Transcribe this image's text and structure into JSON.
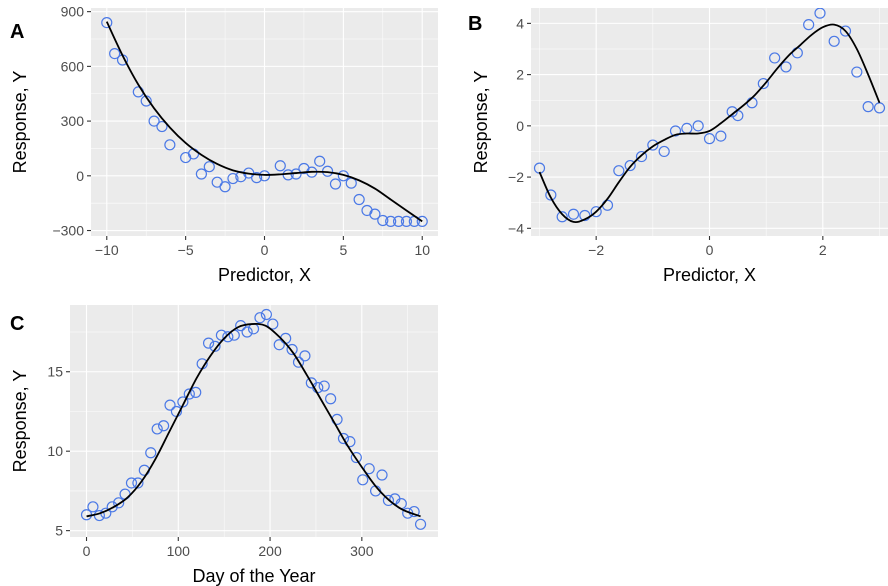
{
  "chart_data": [
    {
      "tag": "A",
      "type": "scatter",
      "xlabel": "Predictor, X",
      "ylabel": "Response, Y",
      "xlim": [
        -11,
        11
      ],
      "ylim": [
        -330,
        920
      ],
      "xticks": [
        -10,
        -5,
        0,
        5,
        10
      ],
      "yticks": [
        -300,
        0,
        300,
        600,
        900
      ],
      "tick_labels_x": [
        "−10",
        "−5",
        "0",
        "5",
        "10"
      ],
      "tick_labels_y": [
        "−300",
        "0",
        "300",
        "600",
        "900"
      ],
      "point_color": "#4b79e6",
      "line_color": "#000000",
      "points": {
        "x": [
          -10,
          -9.5,
          -9,
          -8,
          -7.5,
          -7,
          -6.5,
          -6,
          -5,
          -4.5,
          -4,
          -3.5,
          -3,
          -2.5,
          -2,
          -1.5,
          -1,
          -0.5,
          0,
          1,
          1.5,
          2,
          2.5,
          3,
          3.5,
          4,
          4.5,
          5,
          5.5,
          6,
          6.5,
          7,
          7.5,
          8,
          8.5,
          9,
          9.5,
          10
        ],
        "y": [
          840,
          670,
          635,
          460,
          410,
          300,
          270,
          170,
          100,
          120,
          10,
          50,
          -35,
          -60,
          -15,
          -5,
          15,
          -10,
          0,
          55,
          5,
          10,
          40,
          20,
          80,
          25,
          -45,
          0,
          -40,
          -130,
          -190,
          -210,
          -245,
          -250,
          -250,
          -250,
          -250,
          -250
        ]
      },
      "fit": {
        "x": [
          -10,
          -9,
          -8,
          -7,
          -6,
          -5,
          -4,
          -3,
          -2,
          -1,
          0,
          1,
          2,
          3,
          4,
          5,
          6,
          7,
          8,
          9,
          10
        ],
        "y": [
          845,
          660,
          500,
          370,
          265,
          180,
          115,
          65,
          30,
          12,
          5,
          8,
          15,
          22,
          20,
          5,
          -25,
          -70,
          -130,
          -190,
          -250
        ]
      }
    },
    {
      "tag": "B",
      "type": "scatter",
      "xlabel": "Predictor, X",
      "ylabel": "Response, Y",
      "xlim": [
        -3.15,
        3.15
      ],
      "ylim": [
        -4.3,
        4.6
      ],
      "xticks": [
        -2,
        0,
        2
      ],
      "yticks": [
        -4,
        -2,
        0,
        2,
        4
      ],
      "tick_labels_x": [
        "−2",
        "0",
        "2"
      ],
      "tick_labels_y": [
        "−4",
        "−2",
        "0",
        "2",
        "4"
      ],
      "point_color": "#4b79e6",
      "line_color": "#000000",
      "points": {
        "x": [
          -3,
          -2.8,
          -2.6,
          -2.4,
          -2.2,
          -2,
          -1.8,
          -1.6,
          -1.4,
          -1.2,
          -1,
          -0.8,
          -0.6,
          -0.4,
          -0.2,
          0,
          0.2,
          0.4,
          0.5,
          0.75,
          0.95,
          1.15,
          1.35,
          1.55,
          1.75,
          1.95,
          2.2,
          2.4,
          2.6,
          2.8,
          3
        ],
        "y": [
          -1.65,
          -2.7,
          -3.55,
          -3.45,
          -3.5,
          -3.35,
          -3.1,
          -1.75,
          -1.55,
          -1.2,
          -0.75,
          -1.0,
          -0.2,
          -0.1,
          0.0,
          -0.5,
          -0.4,
          0.55,
          0.4,
          0.9,
          1.65,
          2.65,
          2.3,
          2.85,
          3.95,
          4.4,
          3.3,
          3.7,
          2.1,
          0.75,
          0.7
        ]
      },
      "fit": {
        "x": [
          -3,
          -2.8,
          -2.6,
          -2.4,
          -2.2,
          -2,
          -1.8,
          -1.6,
          -1.4,
          -1.2,
          -1,
          -0.8,
          -0.6,
          -0.4,
          -0.2,
          0,
          0.2,
          0.4,
          0.6,
          0.8,
          1,
          1.2,
          1.4,
          1.6,
          1.8,
          2,
          2.2,
          2.4,
          2.6,
          2.8,
          3
        ],
        "y": [
          -1.8,
          -2.8,
          -3.45,
          -3.75,
          -3.65,
          -3.35,
          -2.85,
          -2.2,
          -1.6,
          -1.15,
          -0.8,
          -0.55,
          -0.35,
          -0.3,
          -0.3,
          -0.2,
          0.1,
          0.45,
          0.8,
          1.2,
          1.7,
          2.25,
          2.75,
          3.15,
          3.55,
          3.85,
          3.95,
          3.7,
          3.0,
          2.0,
          0.9
        ]
      }
    },
    {
      "tag": "C",
      "type": "scatter",
      "xlabel": "Day of the Year",
      "ylabel": "Response, Y",
      "xlim": [
        -18,
        383
      ],
      "ylim": [
        4.6,
        19.2
      ],
      "xticks": [
        0,
        100,
        200,
        300
      ],
      "yticks": [
        5,
        10,
        15
      ],
      "tick_labels_x": [
        "0",
        "100",
        "200",
        "300"
      ],
      "tick_labels_y": [
        "5",
        "10",
        "15"
      ],
      "point_color": "#4b79e6",
      "line_color": "#000000",
      "points": {
        "x": [
          0,
          7,
          14,
          21,
          28,
          35,
          42,
          49,
          56,
          63,
          70,
          77,
          84,
          91,
          98,
          105,
          112,
          119,
          126,
          133,
          140,
          147,
          154,
          161,
          168,
          175,
          182,
          189,
          196,
          203,
          210,
          217,
          224,
          231,
          238,
          245,
          252,
          259,
          266,
          273,
          280,
          287,
          294,
          301,
          308,
          315,
          322,
          329,
          336,
          343,
          350,
          357,
          364
        ],
        "y": [
          6.0,
          6.5,
          5.95,
          6.1,
          6.5,
          6.75,
          7.3,
          8.0,
          8.0,
          8.8,
          9.9,
          11.4,
          11.6,
          12.9,
          12.5,
          13.1,
          13.6,
          13.7,
          15.5,
          16.8,
          16.6,
          17.3,
          17.2,
          17.3,
          17.9,
          17.5,
          17.7,
          18.4,
          18.6,
          18.0,
          16.7,
          17.1,
          16.4,
          15.6,
          16.0,
          14.3,
          14.0,
          14.1,
          13.3,
          12.0,
          10.8,
          10.6,
          9.6,
          8.2,
          8.9,
          7.5,
          8.5,
          6.9,
          7.0,
          6.7,
          6.1,
          6.2,
          5.4
        ]
      },
      "fit": {
        "x": [
          0,
          15,
          30,
          45,
          60,
          75,
          90,
          105,
          120,
          135,
          150,
          165,
          180,
          195,
          210,
          225,
          240,
          255,
          270,
          285,
          300,
          315,
          330,
          345,
          364
        ],
        "y": [
          5.9,
          6.1,
          6.5,
          7.1,
          8.1,
          9.5,
          11.2,
          12.9,
          14.6,
          16.0,
          17.1,
          17.8,
          18.0,
          17.9,
          17.2,
          16.2,
          14.8,
          13.3,
          11.8,
          10.3,
          9.0,
          7.8,
          6.9,
          6.3,
          5.9
        ]
      }
    }
  ]
}
